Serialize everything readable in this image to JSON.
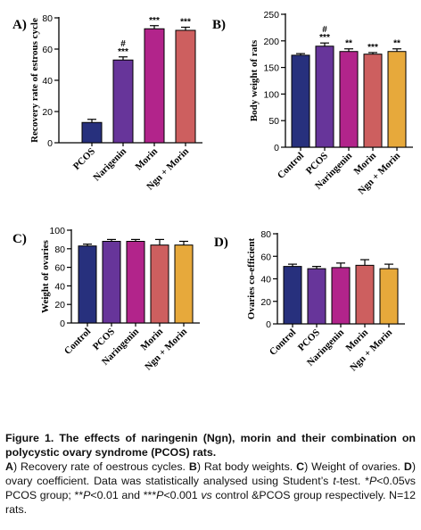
{
  "chart_data": [
    {
      "panel_label": "A)",
      "type": "bar",
      "ylabel": "Recovery rate of estrous cycle",
      "ylim": [
        0,
        80
      ],
      "yticks": [
        0,
        20,
        40,
        60,
        80
      ],
      "categories": [
        "PCOS",
        "Narigenin",
        "Morin",
        "Ngn + Morin"
      ],
      "values": [
        13,
        53,
        73,
        72
      ],
      "errors": [
        2,
        2,
        2,
        2
      ],
      "annotations": [
        "",
        "#\n***",
        "***",
        "***"
      ],
      "colors": [
        "#27307d",
        "#67359a",
        "#b2248b",
        "#cd5f5f"
      ]
    },
    {
      "panel_label": "B)",
      "type": "bar",
      "ylabel": "Body weight of rats",
      "ylim": [
        0,
        250
      ],
      "yticks": [
        0,
        50,
        100,
        150,
        200,
        250
      ],
      "categories": [
        "Control",
        "PCOS",
        "Naringenin",
        "Morin",
        "Ngn + Morin"
      ],
      "values": [
        173,
        190,
        180,
        175,
        180
      ],
      "errors": [
        3,
        6,
        5,
        3,
        5
      ],
      "annotations": [
        "",
        "#\n***",
        "**",
        "***",
        "**"
      ],
      "colors": [
        "#27307d",
        "#67359a",
        "#b2248b",
        "#cd5f5f",
        "#e7a93b"
      ]
    },
    {
      "panel_label": "C)",
      "type": "bar",
      "ylabel": "Weight of ovaries",
      "ylim": [
        0,
        100
      ],
      "yticks": [
        0,
        20,
        40,
        60,
        80,
        100
      ],
      "categories": [
        "Control",
        "PCOS",
        "Naringenin",
        "Morin",
        "Ngn + Morin"
      ],
      "values": [
        83,
        88,
        88,
        84,
        84
      ],
      "errors": [
        2,
        2,
        2,
        6,
        4
      ],
      "annotations": [
        "",
        "",
        "",
        "",
        ""
      ],
      "colors": [
        "#27307d",
        "#67359a",
        "#b2248b",
        "#cd5f5f",
        "#e7a93b"
      ]
    },
    {
      "panel_label": "D)",
      "type": "bar",
      "ylabel": "Ovaries co-efficient",
      "ylim": [
        0,
        80
      ],
      "yticks": [
        0,
        20,
        40,
        60,
        80
      ],
      "categories": [
        "Control",
        "PCOS",
        "Naringenin",
        "Morin",
        "Ngn + Morin"
      ],
      "values": [
        51,
        49,
        50,
        52,
        49
      ],
      "errors": [
        2,
        2,
        4,
        5,
        4
      ],
      "annotations": [
        "",
        "",
        "",
        "",
        ""
      ],
      "colors": [
        "#27307d",
        "#67359a",
        "#b2248b",
        "#cd5f5f",
        "#e7a93b"
      ]
    }
  ],
  "caption": {
    "title": "Figure 1. The effects of naringenin (Ngn), morin and their combination on polycystic ovary syndrome (PCOS) rats.",
    "a_letter": "A",
    "a_text": ") Recovery rate of oestrous cycles. ",
    "b_letter": "B",
    "b_text": ") Rat body weights. ",
    "c_letter": "C",
    "c_text": ") Weight of ovaries. ",
    "d_letter": "D",
    "d_text": ") ovary coefficient. Data was statistically analysed using Student’s ",
    "t_test": "t",
    "after_t": "-test. *",
    "p1": "P",
    "after_p1": "<0.05vs PCOS group; **",
    "p2": "P",
    "after_p2": "<0.01 and ***",
    "p3": "P",
    "after_p3": "<0.001 ",
    "vs": "vs",
    "after_vs": " control &PCOS group respectively. N=12 rats."
  }
}
